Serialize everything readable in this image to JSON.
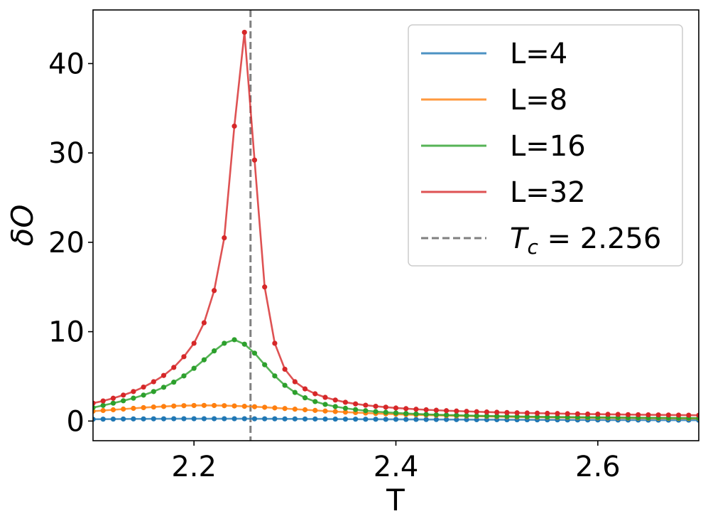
{
  "chart_data": {
    "type": "line",
    "title": "",
    "xlabel": "T",
    "ylabel": "δO",
    "xlim": [
      2.1,
      2.7
    ],
    "ylim": [
      -2.2,
      46
    ],
    "xticks": [
      2.2,
      2.4,
      2.6
    ],
    "yticks": [
      0,
      10,
      20,
      30,
      40
    ],
    "grid": false,
    "legend_position": "top-right",
    "x": [
      2.1,
      2.11,
      2.12,
      2.13,
      2.14,
      2.15,
      2.16,
      2.17,
      2.18,
      2.19,
      2.2,
      2.21,
      2.22,
      2.23,
      2.24,
      2.25,
      2.26,
      2.27,
      2.28,
      2.29,
      2.3,
      2.31,
      2.32,
      2.33,
      2.34,
      2.35,
      2.36,
      2.37,
      2.38,
      2.39,
      2.4,
      2.41,
      2.42,
      2.43,
      2.44,
      2.45,
      2.46,
      2.47,
      2.48,
      2.49,
      2.5,
      2.51,
      2.52,
      2.53,
      2.54,
      2.55,
      2.56,
      2.57,
      2.58,
      2.59,
      2.6,
      2.61,
      2.62,
      2.63,
      2.64,
      2.65,
      2.66,
      2.67,
      2.68,
      2.69,
      2.7
    ],
    "series": [
      {
        "name": "L=4",
        "color": "#1f77b4",
        "values": [
          0.2,
          0.21,
          0.22,
          0.23,
          0.24,
          0.24,
          0.25,
          0.25,
          0.26,
          0.26,
          0.26,
          0.26,
          0.26,
          0.26,
          0.26,
          0.26,
          0.25,
          0.25,
          0.25,
          0.24,
          0.24,
          0.23,
          0.23,
          0.22,
          0.22,
          0.21,
          0.21,
          0.2,
          0.2,
          0.19,
          0.19,
          0.18,
          0.18,
          0.17,
          0.17,
          0.17,
          0.16,
          0.16,
          0.15,
          0.15,
          0.15,
          0.14,
          0.14,
          0.14,
          0.13,
          0.13,
          0.13,
          0.12,
          0.12,
          0.12,
          0.12,
          0.11,
          0.11,
          0.11,
          0.11,
          0.1,
          0.1,
          0.1,
          0.1,
          0.1,
          0.09
        ]
      },
      {
        "name": "L=8",
        "color": "#ff7f0e",
        "values": [
          1.1,
          1.18,
          1.26,
          1.34,
          1.42,
          1.5,
          1.57,
          1.63,
          1.68,
          1.72,
          1.74,
          1.75,
          1.74,
          1.72,
          1.69,
          1.65,
          1.6,
          1.54,
          1.47,
          1.4,
          1.33,
          1.26,
          1.19,
          1.12,
          1.06,
          1.0,
          0.95,
          0.9,
          0.85,
          0.81,
          0.77,
          0.73,
          0.7,
          0.67,
          0.64,
          0.61,
          0.58,
          0.56,
          0.54,
          0.52,
          0.5,
          0.48,
          0.46,
          0.45,
          0.43,
          0.42,
          0.41,
          0.4,
          0.38,
          0.37,
          0.36,
          0.35,
          0.34,
          0.34,
          0.33,
          0.32,
          0.31,
          0.31,
          0.3,
          0.29,
          0.29
        ]
      },
      {
        "name": "L=16",
        "color": "#2ca02c",
        "values": [
          1.5,
          1.75,
          2.0,
          2.27,
          2.56,
          2.9,
          3.3,
          3.78,
          4.35,
          5.05,
          5.9,
          6.85,
          7.85,
          8.7,
          9.1,
          8.6,
          7.6,
          6.3,
          5.05,
          4.0,
          3.2,
          2.6,
          2.18,
          1.86,
          1.62,
          1.43,
          1.28,
          1.16,
          1.06,
          0.98,
          0.91,
          0.85,
          0.8,
          0.75,
          0.71,
          0.68,
          0.65,
          0.62,
          0.59,
          0.57,
          0.55,
          0.53,
          0.51,
          0.49,
          0.48,
          0.46,
          0.45,
          0.44,
          0.43,
          0.42,
          0.41,
          0.4,
          0.39,
          0.38,
          0.37,
          0.36,
          0.36,
          0.35,
          0.34,
          0.34,
          0.33
        ]
      },
      {
        "name": "L=32",
        "color": "#d62728",
        "values": [
          2.0,
          2.25,
          2.55,
          2.9,
          3.3,
          3.8,
          4.4,
          5.1,
          6.0,
          7.2,
          8.7,
          11.0,
          14.6,
          20.5,
          33.0,
          43.5,
          29.2,
          15.0,
          8.7,
          5.8,
          4.4,
          3.6,
          3.05,
          2.65,
          2.35,
          2.1,
          1.92,
          1.77,
          1.65,
          1.55,
          1.46,
          1.39,
          1.32,
          1.26,
          1.21,
          1.16,
          1.12,
          1.08,
          1.04,
          1.01,
          0.98,
          0.95,
          0.92,
          0.9,
          0.88,
          0.86,
          0.84,
          0.82,
          0.8,
          0.78,
          0.77,
          0.75,
          0.74,
          0.72,
          0.71,
          0.7,
          0.69,
          0.68,
          0.67,
          0.66,
          0.65
        ]
      }
    ],
    "reference_line": {
      "name": "T_c = 2.256",
      "x": 2.256,
      "color": "#808080",
      "style": "dashed"
    },
    "legend": [
      {
        "label": "L=4",
        "color": "#1f77b4"
      },
      {
        "label": "L=8",
        "color": "#ff7f0e"
      },
      {
        "label": "L=16",
        "color": "#2ca02c"
      },
      {
        "label": "L=32",
        "color": "#d62728"
      },
      {
        "label_symbol": "T",
        "label_sub": "c",
        "label_rest": " = 2.256",
        "color": "#808080"
      }
    ]
  }
}
